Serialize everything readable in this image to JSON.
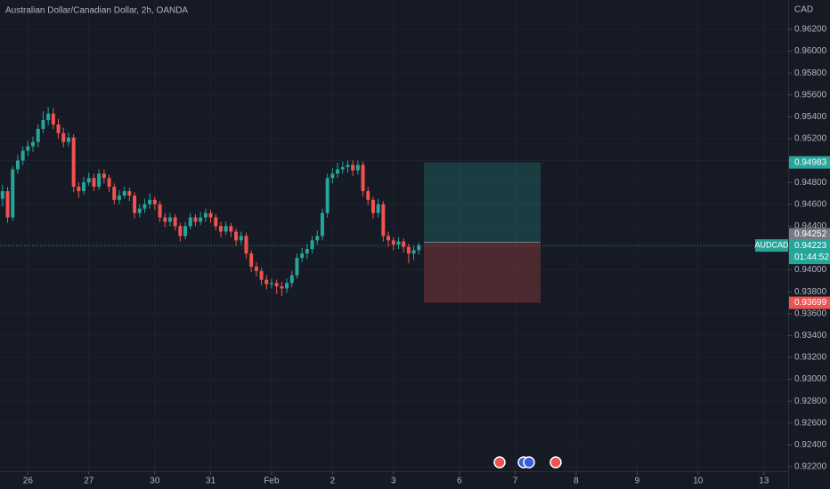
{
  "chart_data": {
    "type": "candlestick",
    "title": "Australian Dollar/Canadian Dollar, 2h, OANDA",
    "y_axis_label": "CAD",
    "x": [
      0,
      1,
      2,
      3,
      4,
      5,
      6,
      7,
      8,
      9,
      10,
      11,
      12,
      13,
      14,
      15,
      16,
      17,
      18,
      19,
      20,
      21,
      22,
      23,
      24,
      25,
      26,
      27,
      28,
      29,
      30,
      31,
      32,
      33,
      34,
      35,
      36,
      37,
      38,
      39,
      40,
      41,
      42,
      43,
      44,
      45,
      46,
      47,
      48,
      49,
      50,
      51,
      52,
      53,
      54,
      55,
      56,
      57,
      58,
      59,
      60,
      61,
      62,
      63,
      64,
      65,
      66,
      67,
      68,
      69,
      70,
      71,
      72,
      73,
      74,
      75,
      76,
      77,
      78,
      79,
      80,
      81,
      82
    ],
    "open": [
      0.9465,
      0.9472,
      0.9448,
      0.9492,
      0.95,
      0.9509,
      0.9513,
      0.9517,
      0.9529,
      0.9537,
      0.9543,
      0.9533,
      0.9525,
      0.9517,
      0.9521,
      0.9476,
      0.9472,
      0.948,
      0.9484,
      0.9476,
      0.9488,
      0.9484,
      0.9476,
      0.9464,
      0.9468,
      0.9472,
      0.9468,
      0.9452,
      0.9456,
      0.946,
      0.9464,
      0.946,
      0.9448,
      0.9444,
      0.9448,
      0.944,
      0.9431,
      0.944,
      0.9448,
      0.9444,
      0.9448,
      0.9452,
      0.9448,
      0.944,
      0.9435,
      0.944,
      0.9435,
      0.9427,
      0.9431,
      0.9415,
      0.9403,
      0.9399,
      0.9391,
      0.9387,
      0.9388,
      0.9385,
      0.9383,
      0.9388,
      0.9395,
      0.9411,
      0.9415,
      0.9419,
      0.9427,
      0.9431,
      0.9452,
      0.9484,
      0.9488,
      0.9492,
      0.9494,
      0.9496,
      0.9491,
      0.9496,
      0.9472,
      0.9464,
      0.9452,
      0.946,
      0.9431,
      0.9427,
      0.9423,
      0.9426,
      0.9421,
      0.9415,
      0.9418
    ],
    "high": [
      0.9478,
      0.9476,
      0.9495,
      0.9505,
      0.9513,
      0.9518,
      0.9522,
      0.9533,
      0.9545,
      0.9549,
      0.9548,
      0.9538,
      0.953,
      0.9526,
      0.9524,
      0.948,
      0.9485,
      0.9489,
      0.9488,
      0.9492,
      0.9492,
      0.9487,
      0.9479,
      0.9473,
      0.9476,
      0.9475,
      0.9471,
      0.946,
      0.9465,
      0.947,
      0.9467,
      0.9463,
      0.9452,
      0.9452,
      0.9451,
      0.9443,
      0.9444,
      0.9452,
      0.9451,
      0.9453,
      0.9456,
      0.9455,
      0.9451,
      0.9444,
      0.9444,
      0.9443,
      0.9438,
      0.9435,
      0.9434,
      0.9418,
      0.9407,
      0.9402,
      0.9395,
      0.9392,
      0.9391,
      0.9389,
      0.9392,
      0.9399,
      0.9415,
      0.942,
      0.9424,
      0.9431,
      0.9436,
      0.9456,
      0.9488,
      0.9493,
      0.9498,
      0.9499,
      0.95,
      0.95,
      0.95,
      0.9499,
      0.9476,
      0.9467,
      0.9465,
      0.9463,
      0.9435,
      0.943,
      0.943,
      0.9429,
      0.9424,
      0.9422,
      0.9425
    ],
    "low": [
      0.9458,
      0.9443,
      0.9445,
      0.9488,
      0.9496,
      0.9504,
      0.9508,
      0.9512,
      0.9525,
      0.9532,
      0.9529,
      0.952,
      0.9512,
      0.9513,
      0.9471,
      0.9466,
      0.9469,
      0.9477,
      0.9472,
      0.9473,
      0.9479,
      0.9471,
      0.946,
      0.946,
      0.9465,
      0.9463,
      0.9447,
      0.9448,
      0.9452,
      0.9456,
      0.9455,
      0.9444,
      0.9439,
      0.944,
      0.9436,
      0.9426,
      0.9428,
      0.9437,
      0.944,
      0.9441,
      0.9444,
      0.9443,
      0.9436,
      0.943,
      0.9432,
      0.943,
      0.9422,
      0.9423,
      0.941,
      0.9398,
      0.9394,
      0.9386,
      0.9382,
      0.9383,
      0.9378,
      0.9376,
      0.9379,
      0.9384,
      0.9392,
      0.9407,
      0.941,
      0.9415,
      0.9423,
      0.9427,
      0.9448,
      0.9479,
      0.9484,
      0.9488,
      0.9489,
      0.9486,
      0.9487,
      0.9467,
      0.9459,
      0.9447,
      0.9448,
      0.9426,
      0.9421,
      0.9418,
      0.9419,
      0.9416,
      0.9406,
      0.9409,
      0.9414
    ],
    "close": [
      0.9472,
      0.9448,
      0.9492,
      0.95,
      0.9509,
      0.9513,
      0.9517,
      0.9529,
      0.9537,
      0.9543,
      0.9533,
      0.9525,
      0.9517,
      0.9521,
      0.9476,
      0.9472,
      0.948,
      0.9484,
      0.9476,
      0.9488,
      0.9484,
      0.9476,
      0.9464,
      0.9468,
      0.9472,
      0.9468,
      0.9452,
      0.9456,
      0.946,
      0.9464,
      0.946,
      0.9448,
      0.9444,
      0.9448,
      0.944,
      0.9431,
      0.944,
      0.9448,
      0.9444,
      0.9448,
      0.9452,
      0.9448,
      0.944,
      0.9435,
      0.944,
      0.9435,
      0.9427,
      0.9431,
      0.9415,
      0.9403,
      0.9399,
      0.9391,
      0.9387,
      0.9388,
      0.9385,
      0.9383,
      0.9388,
      0.9395,
      0.9411,
      0.9415,
      0.9419,
      0.9427,
      0.9431,
      0.9452,
      0.9484,
      0.9488,
      0.9492,
      0.9494,
      0.9496,
      0.9491,
      0.9496,
      0.9472,
      0.9464,
      0.9452,
      0.946,
      0.9431,
      0.9427,
      0.9423,
      0.9426,
      0.9421,
      0.9415,
      0.9418,
      0.94223
    ],
    "up_color": "#26a69a",
    "down_color": "#ef5350",
    "xlim": [
      -0.5,
      154.76
    ],
    "ylim": [
      0.92102,
      0.96468
    ],
    "xticks": [
      {
        "value": 5,
        "label": "26"
      },
      {
        "value": 17,
        "label": "27"
      },
      {
        "value": 30,
        "label": "30"
      },
      {
        "value": 41,
        "label": "31"
      },
      {
        "value": 53,
        "label": "Feb"
      },
      {
        "value": 65,
        "label": "2"
      },
      {
        "value": 77,
        "label": "3"
      },
      {
        "value": 90,
        "label": "6"
      },
      {
        "value": 101,
        "label": "7"
      },
      {
        "value": 113,
        "label": "8"
      },
      {
        "value": 125,
        "label": "9"
      },
      {
        "value": 137,
        "label": "10"
      },
      {
        "value": 150,
        "label": "13"
      }
    ],
    "yticks": [
      {
        "value": 0.922,
        "label": "0.92200"
      },
      {
        "value": 0.924,
        "label": "0.92400"
      },
      {
        "value": 0.926,
        "label": "0.92600"
      },
      {
        "value": 0.928,
        "label": "0.92800"
      },
      {
        "value": 0.93,
        "label": "0.93000"
      },
      {
        "value": 0.932,
        "label": "0.93200"
      },
      {
        "value": 0.934,
        "label": "0.93400"
      },
      {
        "value": 0.936,
        "label": "0.93600"
      },
      {
        "value": 0.938,
        "label": "0.93800"
      },
      {
        "value": 0.94,
        "label": "0.94000"
      },
      {
        "value": 0.942,
        "label": "0.94200"
      },
      {
        "value": 0.944,
        "label": "0.94400"
      },
      {
        "value": 0.946,
        "label": "0.94600"
      },
      {
        "value": 0.948,
        "label": "0.94800"
      },
      {
        "value": 0.95,
        "label": "0.95000"
      },
      {
        "value": 0.952,
        "label": "0.95200"
      },
      {
        "value": 0.954,
        "label": "0.95400"
      },
      {
        "value": 0.956,
        "label": "0.95600"
      },
      {
        "value": 0.958,
        "label": "0.95800"
      },
      {
        "value": 0.96,
        "label": "0.96000"
      },
      {
        "value": 0.962,
        "label": "0.96200"
      }
    ],
    "grid": true,
    "position": {
      "start": 83,
      "end": 106,
      "entry": 0.94252,
      "target": 0.94983,
      "stop": 0.93699
    },
    "last_price": {
      "symbol": "AUDCAD",
      "value": 0.94223,
      "countdown": "01:44:52"
    }
  }
}
